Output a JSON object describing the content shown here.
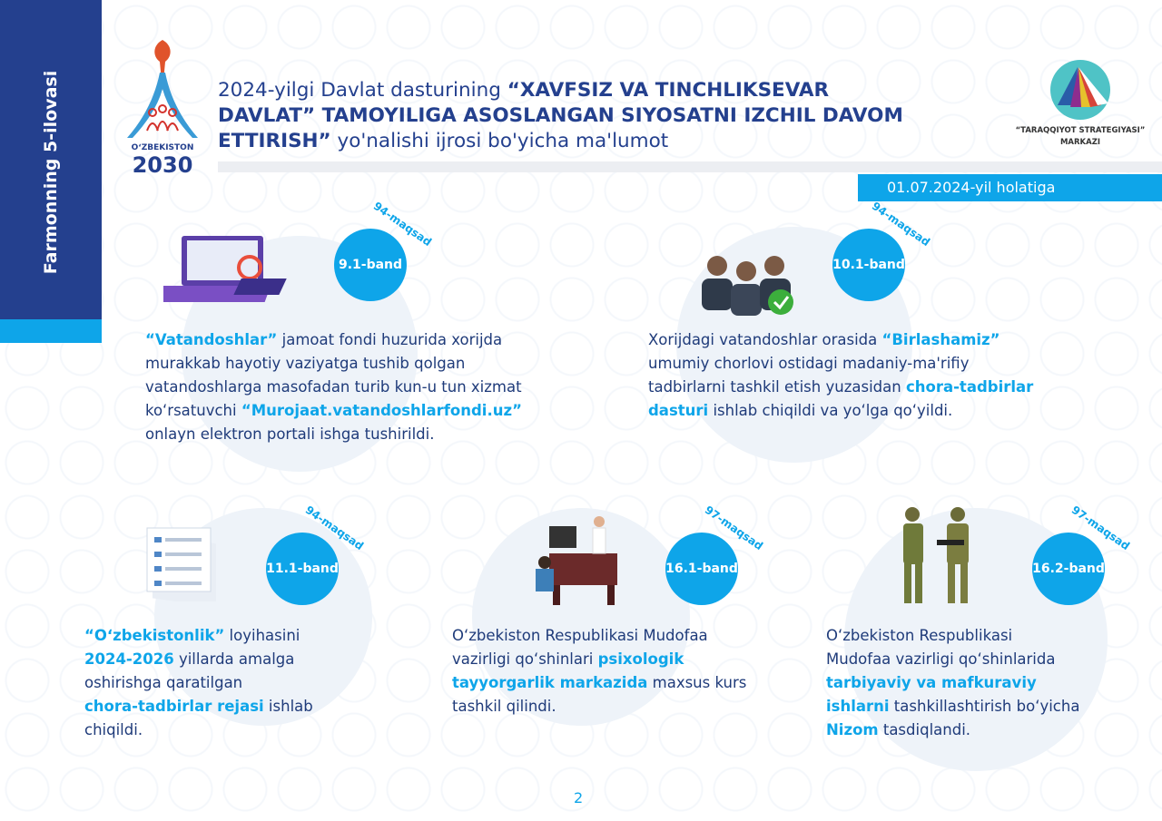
{
  "side_label": "Farmonning 5-ilovasi",
  "logo_left": {
    "line1": "OʻZBEKISTON",
    "line2": "2030"
  },
  "title": {
    "normal1": "2024-yilgi Davlat dasturining ",
    "bold": "“XAVFSIZ VA TINCHLIKSEVAR DAVLAT” TAMOYILIGA ASOSLANGAN SIYOSATNI IZCHIL DAVOM ETTIRISH”",
    "normal2": " yo'nalishi ijrosi bo'yicha ma'lumot"
  },
  "logo_right": {
    "line1": "“TARAQQIYOT STRATEGIYASI”",
    "line2": "MARKAZI"
  },
  "date": "01.07.2024-yil holatiga",
  "colors": {
    "navy": "#24408e",
    "accent": "#0ea5e9",
    "text": "#1f3b7a"
  },
  "blocks": [
    {
      "band": "9.1-band",
      "goal": "94-maqsad",
      "icon": "computer-icon",
      "lines": [
        [
          {
            "t": "“Vatandoshlar”",
            "b": true
          },
          {
            "t": " jamoat fondi huzurida xorijda"
          }
        ],
        [
          {
            "t": "murakkab hayotiy vaziyatga tushib  qolgan"
          }
        ],
        [
          {
            "t": "vatandoshlarga masofadan turib kun-u tun xizmat"
          }
        ],
        [
          {
            "t": "koʻrsatuvchi "
          },
          {
            "t": "“Murojaat.vatandoshlarfondi.uz”",
            "b": true
          }
        ],
        [
          {
            "t": "onlayn elektron portali ishga tushirildi."
          }
        ]
      ]
    },
    {
      "band": "10.1-band",
      "goal": "94-maqsad",
      "icon": "people-approved-icon",
      "lines": [
        [
          {
            "t": "Xorijdagi vatandoshlar orasida "
          },
          {
            "t": "“Birlashamiz”",
            "b": true
          }
        ],
        [
          {
            "t": "umumiy chorlovi ostidagi madaniy-ma'rifiy"
          }
        ],
        [
          {
            "t": "tadbirlarni tashkil etish yuzasidan "
          },
          {
            "t": "chora-tadbirlar",
            "b": true
          }
        ],
        [
          {
            "t": "dasturi",
            "b": true
          },
          {
            "t": " ishlab chiqildi va yoʻlga qoʻyildi."
          }
        ]
      ]
    },
    {
      "band": "11.1-band",
      "goal": "94-maqsad",
      "icon": "documents-icon",
      "lines": [
        [
          {
            "t": "“Oʻzbekistonlik”",
            "b": true
          },
          {
            "t": " loyihasini"
          }
        ],
        [
          {
            "t": "2024-2026",
            "b": true
          },
          {
            "t": " yillarda amalga"
          }
        ],
        [
          {
            "t": "oshirishga qaratilgan"
          }
        ],
        [
          {
            "t": "chora-tadbirlar rejasi",
            "b": true
          },
          {
            "t": " ishlab"
          }
        ],
        [
          {
            "t": "chiqildi."
          }
        ]
      ]
    },
    {
      "band": "16.1-band",
      "goal": "97-maqsad",
      "icon": "consultation-desk-icon",
      "lines": [
        [
          {
            "t": "Oʻzbekiston Respublikasi Mudofaa"
          }
        ],
        [
          {
            "t": "vazirligi qoʻshinlari "
          },
          {
            "t": "psixologik",
            "b": true
          }
        ],
        [
          {
            "t": "tayyorgarlik markazida",
            "b": true
          },
          {
            "t": " maxsus kurs"
          }
        ],
        [
          {
            "t": "tashkil qilindi."
          }
        ]
      ]
    },
    {
      "band": "16.2-band",
      "goal": "97-maqsad",
      "icon": "soldiers-icon",
      "lines": [
        [
          {
            "t": "Oʻzbekiston Respublikasi"
          }
        ],
        [
          {
            "t": "Mudofaa vazirligi qoʻshinlarida"
          }
        ],
        [
          {
            "t": "tarbiyaviy va mafkuraviy",
            "b": true
          }
        ],
        [
          {
            "t": "ishlarni",
            "b": true
          },
          {
            "t": " tashkillashtirish boʻyicha"
          }
        ],
        [
          {
            "t": "Nizom",
            "b": true
          },
          {
            "t": " tasdiqlandi."
          }
        ]
      ]
    }
  ],
  "page_number": "2"
}
